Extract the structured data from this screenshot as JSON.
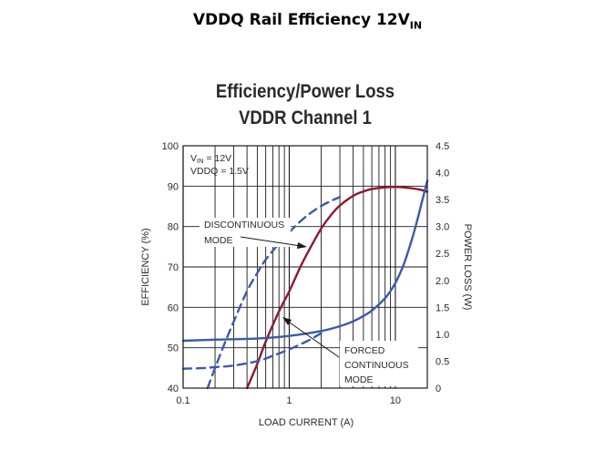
{
  "slide": {
    "title": "VDDQ Rail Efficiency 12V",
    "title_sub": "IN"
  },
  "chart_data": {
    "type": "line",
    "title": [
      "Efficiency/Power Loss",
      "VDDR Channel 1"
    ],
    "xlabel": "LOAD CURRENT (A)",
    "ylabel_left": "EFFICIENCY (%)",
    "ylabel_right": "POWER LOSS (W)",
    "x_scale": "log",
    "xlim": [
      0.1,
      20
    ],
    "ylim_left": [
      40,
      100
    ],
    "ylim_right": [
      0,
      4.5
    ],
    "x_ticks": [
      0.1,
      1,
      10
    ],
    "x_tick_labels": [
      "0.1",
      "1",
      "10"
    ],
    "y_ticks_left": [
      40,
      50,
      60,
      70,
      80,
      90,
      100
    ],
    "y_tick_labels_left": [
      "40",
      "50",
      "60",
      "70",
      "80",
      "90",
      "100"
    ],
    "y_ticks_right": [
      0,
      0.5,
      1.0,
      1.5,
      2.0,
      2.5,
      3.0,
      3.5,
      4.0,
      4.5
    ],
    "y_tick_labels_right": [
      "0",
      "0.5",
      "1.0",
      "1.5",
      "2.0",
      "2.5",
      "3.0",
      "3.5",
      "4.0",
      "4.5"
    ],
    "grid": true,
    "conditions": {
      "vin_label": "V",
      "vin_sub": "IN",
      "vin_value": " = 12V",
      "vddq": "VDDQ = 1.5V"
    },
    "annotations": [
      {
        "lines": [
          "DISCONTINUOUS",
          "MODE"
        ]
      },
      {
        "lines": [
          "FORCED",
          "CONTINUOUS",
          "MODE"
        ]
      }
    ],
    "series": [
      {
        "name": "Efficiency - Forced Continuous Mode",
        "axis": "left",
        "style": "solid",
        "color": "#8b1a2e",
        "x": [
          0.4,
          0.5,
          0.6,
          0.8,
          1,
          1.3,
          1.6,
          2,
          2.5,
          3,
          4,
          5,
          6,
          8,
          10,
          12,
          15,
          18,
          20
        ],
        "y": [
          40,
          46,
          51.5,
          59,
          64,
          70.5,
          75,
          79.5,
          83,
          85.2,
          87.6,
          88.7,
          89.3,
          89.7,
          89.8,
          89.7,
          89.4,
          89,
          88.6
        ]
      },
      {
        "name": "Efficiency - Discontinuous Mode",
        "axis": "left",
        "style": "dashed",
        "color": "#3b5aa8",
        "x": [
          0.17,
          0.2,
          0.25,
          0.3,
          0.4,
          0.5,
          0.6,
          0.8,
          1,
          1.3,
          1.6,
          2,
          2.5,
          3
        ],
        "y": [
          40,
          45,
          51.5,
          56.5,
          64,
          68.5,
          71.8,
          75.8,
          78.6,
          81.5,
          83.4,
          85.1,
          86.4,
          87.3
        ]
      },
      {
        "name": "Power Loss - Forced Continuous Mode",
        "axis": "right",
        "style": "solid",
        "color": "#3b5aa8",
        "x": [
          0.1,
          0.2,
          0.5,
          1,
          2,
          3,
          4,
          5,
          6,
          8,
          10,
          12,
          14,
          16,
          18,
          20
        ],
        "y": [
          0.88,
          0.9,
          0.92,
          0.97,
          1.06,
          1.15,
          1.24,
          1.34,
          1.44,
          1.67,
          1.95,
          2.3,
          2.7,
          3.1,
          3.5,
          3.85
        ]
      },
      {
        "name": "Power Loss - Discontinuous Mode",
        "axis": "right",
        "style": "dashed",
        "color": "#3b5aa8",
        "x": [
          0.1,
          0.15,
          0.2,
          0.3,
          0.5,
          0.7,
          1,
          1.5,
          2
        ],
        "y": [
          0.36,
          0.37,
          0.39,
          0.42,
          0.5,
          0.6,
          0.72,
          0.88,
          1.02
        ]
      }
    ]
  }
}
